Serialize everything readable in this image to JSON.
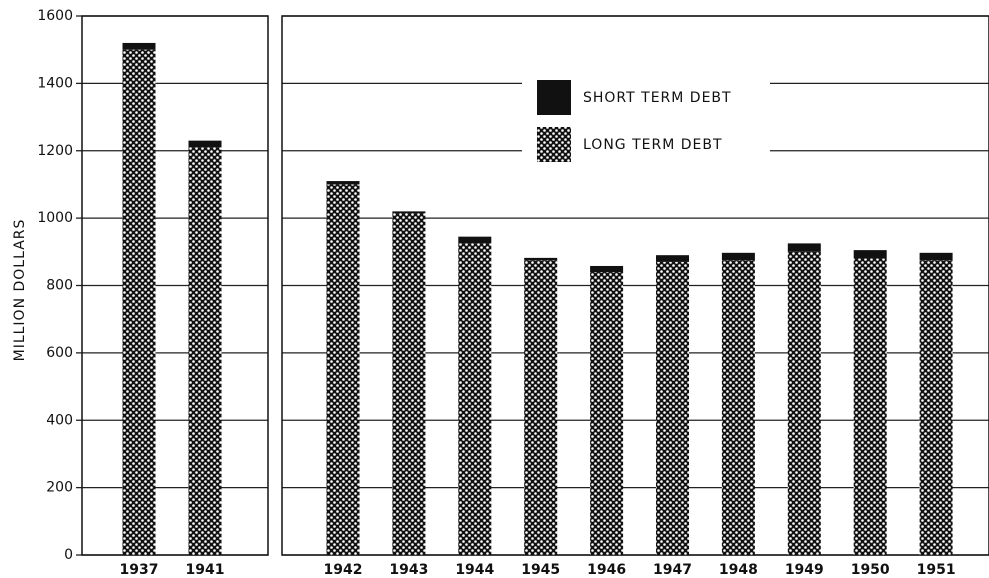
{
  "chart_data": [
    {
      "type": "bar",
      "stacked": true,
      "y_label": "MILLION DOLLARS",
      "categories": [
        "1937",
        "1941"
      ],
      "series": [
        {
          "color": "#111111",
          "pattern": "dots",
          "values": [
            1500,
            1210
          ]
        },
        {
          "color": "#111111",
          "values": [
            20,
            20
          ]
        }
      ],
      "ylim": [
        0,
        1600
      ],
      "yticks": [
        0,
        200,
        400,
        600,
        800,
        1000,
        1200,
        1400,
        1600
      ],
      "grid": true
    },
    {
      "type": "bar",
      "stacked": true,
      "legend": "upper center",
      "categories": [
        "1942",
        "1943",
        "1944",
        "1945",
        "1946",
        "1947",
        "1948",
        "1949",
        "1950",
        "1951"
      ],
      "series": [
        {
          "name": "LONG TERM DEBT",
          "color": "#111111",
          "pattern": "dots",
          "values": [
            1100,
            1015,
            925,
            875,
            840,
            870,
            875,
            900,
            880,
            875
          ]
        },
        {
          "name": "SHORT TERM DEBT",
          "color": "#111111",
          "values": [
            10,
            5,
            20,
            7,
            18,
            20,
            22,
            25,
            25,
            22
          ]
        }
      ],
      "ylim": [
        0,
        1600
      ],
      "yticks": [
        0,
        200,
        400,
        600,
        800,
        1000,
        1200,
        1400,
        1600
      ],
      "grid": true
    }
  ]
}
